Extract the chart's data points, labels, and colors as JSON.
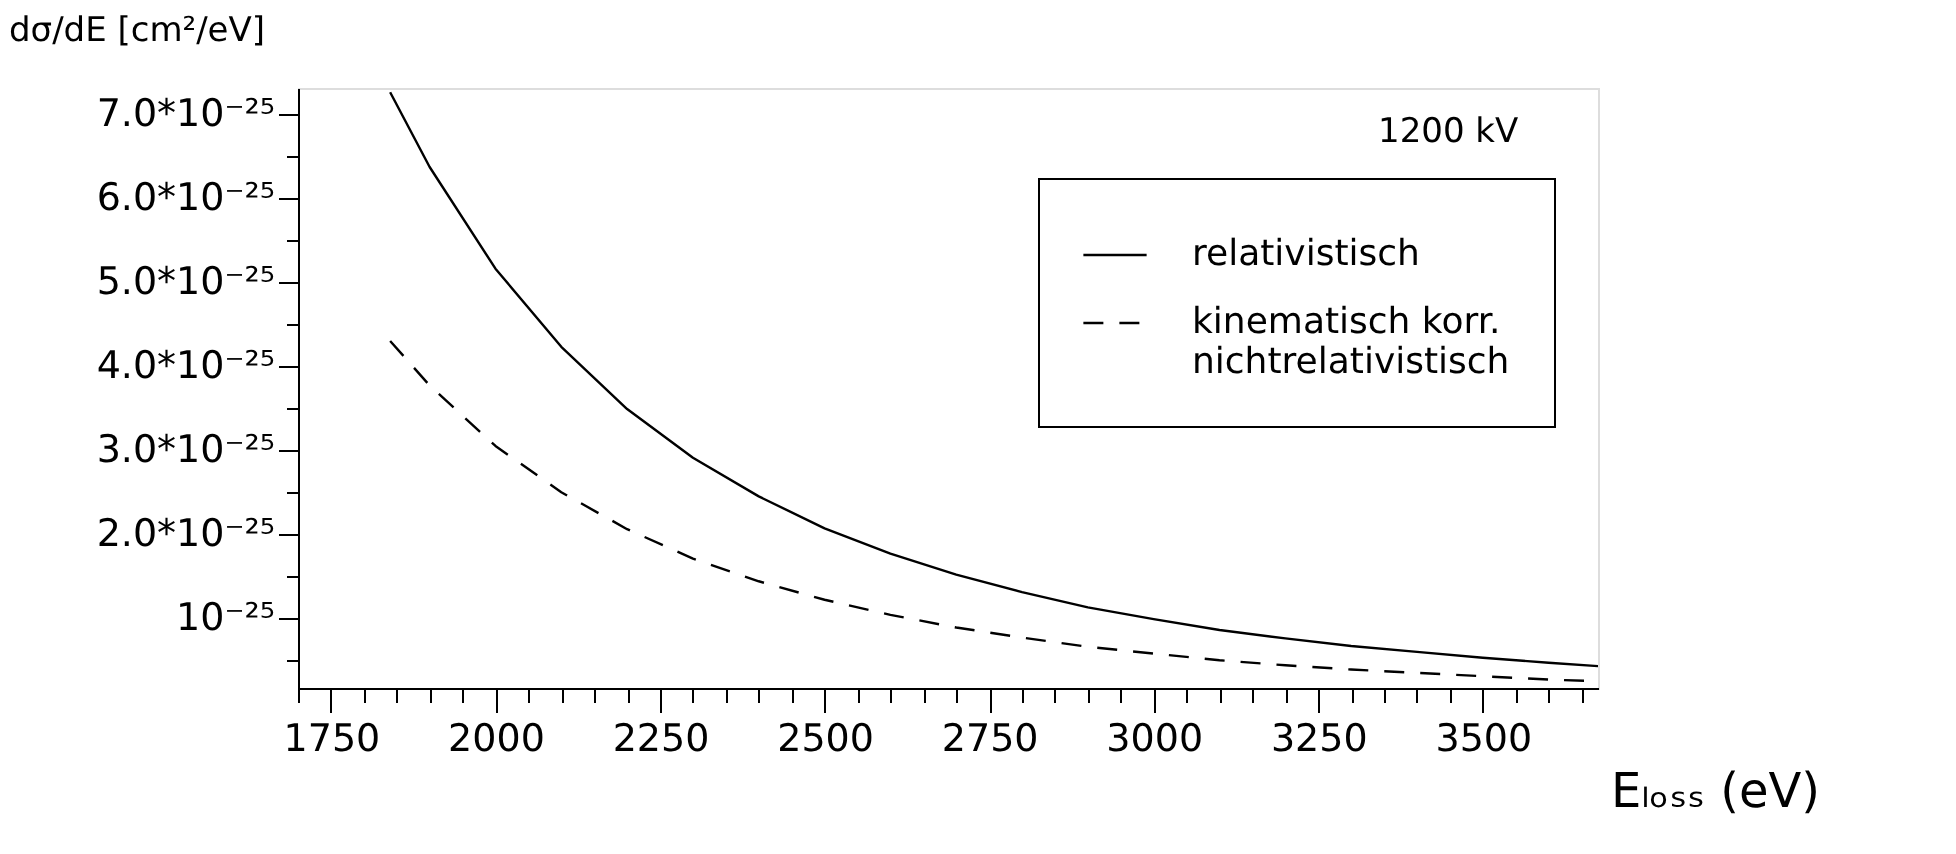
{
  "chart_data": {
    "type": "line",
    "x": [
      1840,
      1900,
      2000,
      2100,
      2200,
      2300,
      2400,
      2500,
      2600,
      2700,
      2800,
      2900,
      3000,
      3100,
      3200,
      3300,
      3400,
      3500,
      3600,
      3675
    ],
    "series": [
      {
        "name": "relativistisch",
        "color": "#000000",
        "line_style": "solid",
        "values": [
          7.25e-25,
          6.36e-25,
          5.15e-25,
          4.22e-25,
          3.48e-25,
          2.9e-25,
          2.44e-25,
          2.06e-25,
          1.76e-25,
          1.51e-25,
          1.3e-25,
          1.12e-25,
          9.8e-26,
          8.5e-26,
          7.5e-26,
          6.6e-26,
          5.9e-26,
          5.2e-26,
          4.6e-26,
          4.2e-26
        ]
      },
      {
        "name": "kinematisch korr.\nnichtrelativistisch",
        "color": "#000000",
        "line_style": "dashed",
        "values": [
          4.29e-25,
          3.76e-25,
          3.04e-25,
          2.49e-25,
          2.05e-25,
          1.7e-25,
          1.43e-25,
          1.21e-25,
          1.03e-25,
          8.8e-26,
          7.6e-26,
          6.5e-26,
          5.7e-26,
          4.9e-26,
          4.3e-26,
          3.8e-26,
          3.4e-26,
          3e-26,
          2.6e-26,
          2.4e-26
        ]
      }
    ],
    "xlabel": "Eₗₒₛₛ (eV)",
    "ylabel": "dσ/dE [cm²/eV]",
    "annotations": [
      "1200 kV"
    ],
    "xlim": [
      1700,
      3675
    ],
    "ylim": [
      1.6e-26,
      7.3e-25
    ],
    "xticks": [
      {
        "value": 1700,
        "label": null
      },
      1750,
      {
        "value": 1800,
        "label": null
      },
      {
        "value": 1850,
        "label": null
      },
      {
        "value": 1900,
        "label": null
      },
      {
        "value": 1950,
        "label": null
      },
      2000,
      {
        "value": 2050,
        "label": null
      },
      {
        "value": 2100,
        "label": null
      },
      {
        "value": 2150,
        "label": null
      },
      {
        "value": 2200,
        "label": null
      },
      2250,
      {
        "value": 2300,
        "label": null
      },
      {
        "value": 2350,
        "label": null
      },
      {
        "value": 2400,
        "label": null
      },
      {
        "value": 2450,
        "label": null
      },
      2500,
      {
        "value": 2550,
        "label": null
      },
      {
        "value": 2600,
        "label": null
      },
      {
        "value": 2650,
        "label": null
      },
      {
        "value": 2700,
        "label": null
      },
      2750,
      {
        "value": 2800,
        "label": null
      },
      {
        "value": 2850,
        "label": null
      },
      {
        "value": 2900,
        "label": null
      },
      {
        "value": 2950,
        "label": null
      },
      3000,
      {
        "value": 3050,
        "label": null
      },
      {
        "value": 3100,
        "label": null
      },
      {
        "value": 3150,
        "label": null
      },
      {
        "value": 3200,
        "label": null
      },
      3250,
      {
        "value": 3300,
        "label": null
      },
      {
        "value": 3350,
        "label": null
      },
      {
        "value": 3400,
        "label": null
      },
      {
        "value": 3450,
        "label": null
      },
      3500,
      {
        "value": 3550,
        "label": null
      },
      {
        "value": 3600,
        "label": null
      },
      {
        "value": 3650,
        "label": null
      }
    ],
    "yticks": [
      {
        "value": 5e-26,
        "label": null
      },
      {
        "value": 1e-25,
        "label": "10⁻²⁵"
      },
      {
        "value": 1.5e-25,
        "label": null
      },
      {
        "value": 2e-25,
        "label": "2.0*10⁻²⁵"
      },
      {
        "value": 2.5e-25,
        "label": null
      },
      {
        "value": 3e-25,
        "label": "3.0*10⁻²⁵"
      },
      {
        "value": 3.5e-25,
        "label": null
      },
      {
        "value": 4e-25,
        "label": "4.0*10⁻²⁵"
      },
      {
        "value": 4.5e-25,
        "label": null
      },
      {
        "value": 5e-25,
        "label": "5.0*10⁻²⁵"
      },
      {
        "value": 5.5e-25,
        "label": null
      },
      {
        "value": 6e-25,
        "label": "6.0*10⁻²⁵"
      },
      {
        "value": 6.5e-25,
        "label": null
      },
      {
        "value": 7e-25,
        "label": "7.0*10⁻²⁵"
      }
    ],
    "grid": false,
    "legend": "top right"
  }
}
